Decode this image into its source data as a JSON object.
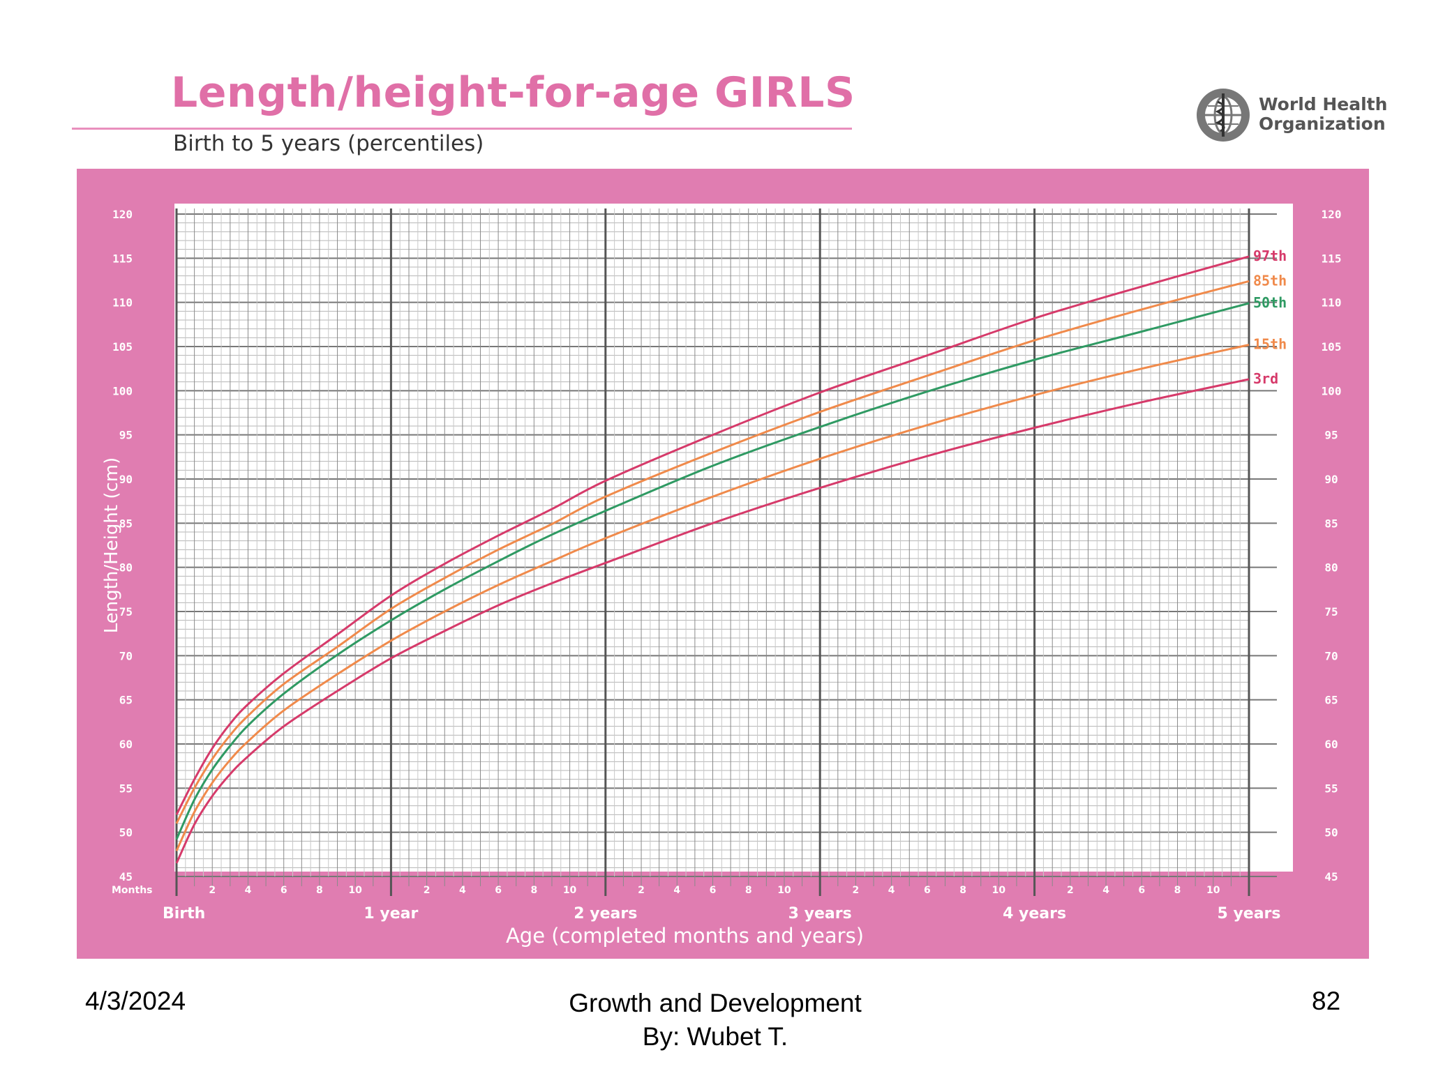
{
  "header": {
    "title": "Length/height-for-age GIRLS",
    "subtitle": "Birth to 5 years (percentiles)"
  },
  "logo": {
    "icon": "who-emblem-icon",
    "line1": "World Health",
    "line2": "Organization"
  },
  "colors": {
    "panel": "#e07db1",
    "grid_bg": "#ffffff",
    "p3": "#d63a6a",
    "p15": "#f08a4b",
    "p50": "#2f9a63",
    "p85": "#f08a4b",
    "p97": "#d63a6a"
  },
  "chart_data": {
    "type": "line",
    "title": "Length/height-for-age GIRLS",
    "subtitle": "Birth to 5 years (percentiles)",
    "xlabel": "Age (completed months and years)",
    "ylabel": "Length/Height (cm)",
    "xlim": [
      0,
      60
    ],
    "ylim": [
      45,
      120
    ],
    "y_ticks": [
      45,
      50,
      55,
      60,
      65,
      70,
      75,
      80,
      85,
      90,
      95,
      100,
      105,
      110,
      115,
      120
    ],
    "months_label": "Months",
    "month_ticks": [
      "2",
      "4",
      "6",
      "8",
      "10",
      "2",
      "4",
      "6",
      "8",
      "10",
      "2",
      "4",
      "6",
      "8",
      "10",
      "2",
      "4",
      "6",
      "8",
      "10",
      "2",
      "4",
      "6",
      "8",
      "10"
    ],
    "year_ticks": [
      {
        "month": 0,
        "label": "Birth"
      },
      {
        "month": 12,
        "label": "1 year"
      },
      {
        "month": 24,
        "label": "2 years"
      },
      {
        "month": 36,
        "label": "3 years"
      },
      {
        "month": 48,
        "label": "4 years"
      },
      {
        "month": 60,
        "label": "5 years"
      }
    ],
    "x": [
      0,
      1,
      2,
      3,
      4,
      6,
      9,
      12,
      15,
      18,
      21,
      24,
      30,
      36,
      42,
      48,
      54,
      60
    ],
    "series": [
      {
        "name": "97th",
        "color_key": "p97",
        "values": [
          52.0,
          56.0,
          59.5,
          62.3,
          64.5,
          68.0,
          72.4,
          76.8,
          80.4,
          83.6,
          86.6,
          89.8,
          95.0,
          99.8,
          104.0,
          108.2,
          111.8,
          115.2
        ]
      },
      {
        "name": "85th",
        "color_key": "p85",
        "values": [
          51.0,
          55.0,
          58.3,
          61.0,
          63.2,
          66.8,
          71.0,
          75.3,
          78.8,
          82.0,
          84.9,
          88.0,
          93.0,
          97.6,
          101.7,
          105.7,
          109.2,
          112.4
        ]
      },
      {
        "name": "50th",
        "color_key": "p50",
        "values": [
          49.2,
          53.7,
          57.1,
          59.8,
          62.1,
          65.7,
          70.1,
          74.0,
          77.5,
          80.7,
          83.7,
          86.4,
          91.5,
          95.9,
          99.9,
          103.5,
          106.7,
          109.9
        ]
      },
      {
        "name": "15th",
        "color_key": "p15",
        "values": [
          47.9,
          52.3,
          55.6,
          58.2,
          60.3,
          63.8,
          67.9,
          71.7,
          75.0,
          78.0,
          80.7,
          83.3,
          88.0,
          92.3,
          96.1,
          99.5,
          102.5,
          105.2
        ]
      },
      {
        "name": "3rd",
        "color_key": "p3",
        "values": [
          46.5,
          50.9,
          54.1,
          56.6,
          58.6,
          62.0,
          66.0,
          69.7,
          72.8,
          75.7,
          78.2,
          80.5,
          85.0,
          89.0,
          92.6,
          95.8,
          98.7,
          101.3
        ]
      }
    ],
    "grid": true,
    "legend": "right-end-labels"
  },
  "footer": {
    "date": "4/3/2024",
    "center_line1": "Growth and Development",
    "center_line2": "By: Wubet T.",
    "page": "82"
  }
}
